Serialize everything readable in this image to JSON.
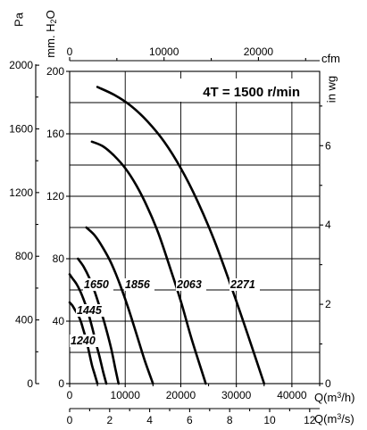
{
  "chart_data": {
    "type": "line",
    "title": "4T = 1500 r/min",
    "axes": {
      "left_outer": {
        "label": "Pa",
        "ticks": [
          "0",
          "400",
          "800",
          "1200",
          "1600",
          "2000"
        ]
      },
      "left_inner": {
        "label": "mm. H2O",
        "ticks": [
          "0",
          "40",
          "80",
          "120",
          "160",
          "200"
        ]
      },
      "right": {
        "label": "in wg",
        "ticks": [
          "0",
          "2",
          "4",
          "6"
        ]
      },
      "top": {
        "label": "cfm",
        "ticks": [
          "0",
          "10000",
          "20000"
        ]
      },
      "bottom_m3h": {
        "label": "Q(m3/h)",
        "ticks": [
          "0",
          "10000",
          "20000",
          "30000",
          "40000"
        ]
      },
      "bottom_m3s": {
        "label": "Q(m3/s)",
        "ticks": [
          "0",
          "2",
          "4",
          "6",
          "8",
          "10",
          "12"
        ]
      }
    },
    "xlim": [
      0,
      45000
    ],
    "ylim": [
      0,
      200
    ],
    "x_unit": "m3/h",
    "y_unit": "mm H2O",
    "grid": true,
    "series": [
      {
        "name": "1240",
        "x": [
          0,
          500,
          1000,
          1500,
          2000,
          2500,
          3000,
          3500,
          4000,
          4500,
          5000
        ],
        "y": [
          52,
          50,
          47,
          44,
          40,
          34,
          28,
          20,
          12,
          6,
          0
        ]
      },
      {
        "name": "1445",
        "x": [
          0,
          600,
          1200,
          1800,
          2400,
          3000,
          3600,
          4200,
          4800,
          5400,
          6000,
          6600
        ],
        "y": [
          70,
          67,
          64,
          60,
          55,
          49,
          42,
          34,
          25,
          17,
          8,
          0
        ]
      },
      {
        "name": "1650",
        "x": [
          1500,
          2500,
          3500,
          4500,
          5500,
          6500,
          7500,
          8200,
          8800
        ],
        "y": [
          80,
          75,
          68,
          59,
          48,
          36,
          22,
          10,
          0
        ]
      },
      {
        "name": "1856",
        "x": [
          3000,
          4500,
          6000,
          7500,
          9000,
          10500,
          12000,
          13500,
          15000
        ],
        "y": [
          100,
          95,
          87,
          77,
          64,
          49,
          32,
          15,
          0
        ]
      },
      {
        "name": "2063",
        "x": [
          4000,
          6000,
          8000,
          10000,
          12000,
          14000,
          16000,
          18000,
          20000,
          22000,
          24500
        ],
        "y": [
          155,
          152,
          146,
          138,
          127,
          113,
          96,
          75,
          53,
          28,
          0
        ]
      },
      {
        "name": "2271",
        "x": [
          5000,
          8000,
          11000,
          14000,
          17000,
          20000,
          23000,
          26000,
          29000,
          32000,
          35000
        ],
        "y": [
          190,
          185,
          178,
          168,
          155,
          138,
          117,
          92,
          63,
          32,
          0
        ]
      }
    ]
  }
}
